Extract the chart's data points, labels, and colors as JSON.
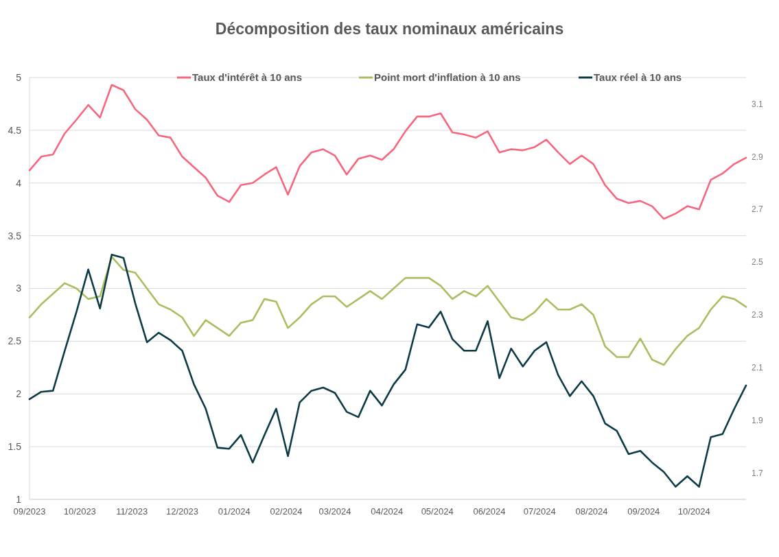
{
  "chart_data": {
    "type": "line",
    "title": "Décomposition des taux nominaux américains",
    "x": [
      "2023-09-01",
      "2023-09-08",
      "2023-09-15",
      "2023-09-22",
      "2023-09-29",
      "2023-10-06",
      "2023-10-13",
      "2023-10-20",
      "2023-10-27",
      "2023-11-03",
      "2023-11-10",
      "2023-11-17",
      "2023-11-24",
      "2023-12-01",
      "2023-12-08",
      "2023-12-15",
      "2023-12-22",
      "2023-12-29",
      "2024-01-05",
      "2024-01-12",
      "2024-01-19",
      "2024-01-26",
      "2024-02-02",
      "2024-02-09",
      "2024-02-16",
      "2024-02-23",
      "2024-03-01",
      "2024-03-08",
      "2024-03-15",
      "2024-03-22",
      "2024-03-29",
      "2024-04-05",
      "2024-04-12",
      "2024-04-19",
      "2024-04-26",
      "2024-05-03",
      "2024-05-10",
      "2024-05-17",
      "2024-05-24",
      "2024-05-31",
      "2024-06-07",
      "2024-06-14",
      "2024-06-21",
      "2024-06-28",
      "2024-07-05",
      "2024-07-12",
      "2024-07-19",
      "2024-07-26",
      "2024-08-02",
      "2024-08-09",
      "2024-08-16",
      "2024-08-23",
      "2024-08-30",
      "2024-09-06",
      "2024-09-13",
      "2024-09-20",
      "2024-09-27",
      "2024-10-04",
      "2024-10-11",
      "2024-10-18",
      "2024-10-25",
      "2024-11-01"
    ],
    "xlim": [
      "2023-09-01",
      "2024-11-01"
    ],
    "xticks": [
      {
        "value": "2023-09-01",
        "label": "09/2023"
      },
      {
        "value": "2023-10-01",
        "label": "10/2023"
      },
      {
        "value": "2023-11-01",
        "label": "11/2023"
      },
      {
        "value": "2023-12-01",
        "label": "12/2023"
      },
      {
        "value": "2024-01-01",
        "label": "01/2024"
      },
      {
        "value": "2024-02-01",
        "label": "02/2024"
      },
      {
        "value": "2024-03-01",
        "label": "03/2024"
      },
      {
        "value": "2024-04-01",
        "label": "04/2024"
      },
      {
        "value": "2024-05-01",
        "label": "05/2024"
      },
      {
        "value": "2024-06-01",
        "label": "06/2024"
      },
      {
        "value": "2024-07-01",
        "label": "07/2024"
      },
      {
        "value": "2024-08-01",
        "label": "08/2024"
      },
      {
        "value": "2024-09-01",
        "label": "09/2024"
      },
      {
        "value": "2024-10-01",
        "label": "10/2024"
      }
    ],
    "ylim": [
      1,
      5
    ],
    "yticks": [
      1,
      1.5,
      2,
      2.5,
      3,
      3.5,
      4,
      4.5,
      5
    ],
    "y2lim": [
      1.6,
      3.2
    ],
    "y2ticks": [
      1.7,
      1.9,
      2.1,
      2.3,
      2.5,
      2.7,
      2.9,
      3.1
    ],
    "grid": "y",
    "legend": "top",
    "marker": "none",
    "line_style": "solid",
    "series": [
      {
        "name": "Taux d'intérêt à 10 ans",
        "color": "#f7667f",
        "values": [
          4.12,
          4.25,
          4.27,
          4.47,
          4.6,
          4.74,
          4.62,
          4.93,
          4.88,
          4.7,
          4.6,
          4.45,
          4.43,
          4.25,
          4.15,
          4.05,
          3.88,
          3.82,
          3.98,
          4.0,
          4.08,
          4.15,
          3.89,
          4.16,
          4.29,
          4.32,
          4.26,
          4.08,
          4.23,
          4.26,
          4.22,
          4.32,
          4.49,
          4.63,
          4.63,
          4.66,
          4.48,
          4.46,
          4.43,
          4.49,
          4.29,
          4.32,
          4.31,
          4.34,
          4.41,
          4.29,
          4.18,
          4.26,
          4.18,
          3.98,
          3.85,
          3.81,
          3.83,
          3.78,
          3.66,
          3.71,
          3.78,
          3.75,
          4.03,
          4.09,
          4.18,
          4.24
        ]
      },
      {
        "name": "Point mort d'inflation à  10 ans",
        "color": "#a9bd61",
        "axis": "y2",
        "values": [
          2.29,
          2.34,
          2.38,
          2.42,
          2.4,
          2.36,
          2.37,
          2.52,
          2.47,
          2.46,
          2.4,
          2.34,
          2.32,
          2.29,
          2.22,
          2.28,
          2.25,
          2.22,
          2.27,
          2.28,
          2.36,
          2.35,
          2.25,
          2.29,
          2.34,
          2.37,
          2.37,
          2.33,
          2.36,
          2.39,
          2.36,
          2.4,
          2.44,
          2.44,
          2.44,
          2.41,
          2.36,
          2.39,
          2.37,
          2.41,
          2.35,
          2.29,
          2.28,
          2.31,
          2.36,
          2.32,
          2.32,
          2.34,
          2.3,
          2.18,
          2.14,
          2.14,
          2.21,
          2.13,
          2.11,
          2.17,
          2.22,
          2.25,
          2.32,
          2.37,
          2.36,
          2.33
        ]
      },
      {
        "name": "Taux réel à 10 ans",
        "color": "#0d3b45",
        "values": [
          1.95,
          2.02,
          2.03,
          2.41,
          2.78,
          3.18,
          2.81,
          3.32,
          3.29,
          2.86,
          2.49,
          2.58,
          2.51,
          2.41,
          2.09,
          1.86,
          1.49,
          1.48,
          1.61,
          1.35,
          1.61,
          1.86,
          1.41,
          1.92,
          2.03,
          2.06,
          2.01,
          1.83,
          1.78,
          2.03,
          1.89,
          2.09,
          2.23,
          2.66,
          2.63,
          2.78,
          2.52,
          2.41,
          2.41,
          2.69,
          2.15,
          2.43,
          2.26,
          2.41,
          2.49,
          2.18,
          1.98,
          2.12,
          1.98,
          1.72,
          1.65,
          1.43,
          1.46,
          1.35,
          1.26,
          1.12,
          1.22,
          1.12,
          1.59,
          1.62,
          1.86,
          2.08
        ]
      }
    ]
  }
}
